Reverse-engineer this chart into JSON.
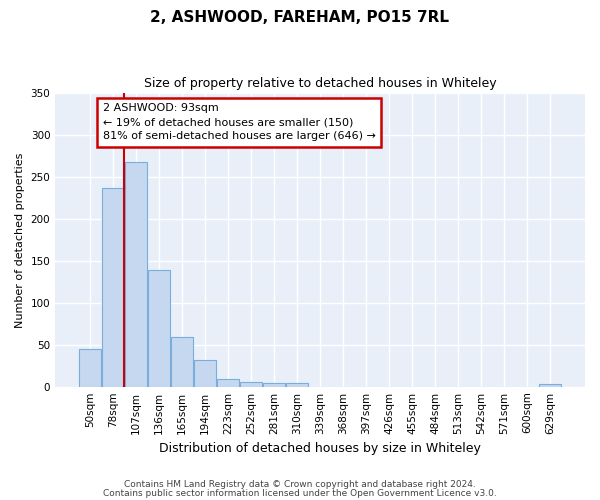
{
  "title": "2, ASHWOOD, FAREHAM, PO15 7RL",
  "subtitle": "Size of property relative to detached houses in Whiteley",
  "xlabel": "Distribution of detached houses by size in Whiteley",
  "ylabel": "Number of detached properties",
  "categories": [
    "50sqm",
    "78sqm",
    "107sqm",
    "136sqm",
    "165sqm",
    "194sqm",
    "223sqm",
    "252sqm",
    "281sqm",
    "310sqm",
    "339sqm",
    "368sqm",
    "397sqm",
    "426sqm",
    "455sqm",
    "484sqm",
    "513sqm",
    "542sqm",
    "571sqm",
    "600sqm",
    "629sqm"
  ],
  "values": [
    45,
    237,
    268,
    139,
    59,
    32,
    9,
    6,
    4,
    4,
    0,
    0,
    0,
    0,
    0,
    0,
    0,
    0,
    0,
    0,
    3
  ],
  "bar_color": "#c5d8f0",
  "bar_edge_color": "#7aadda",
  "plot_bg_color": "#e8eff9",
  "fig_bg_color": "#ffffff",
  "grid_color": "#ffffff",
  "ylim": [
    0,
    350
  ],
  "yticks": [
    0,
    50,
    100,
    150,
    200,
    250,
    300,
    350
  ],
  "red_line_color": "#cc0000",
  "annotation_text": "2 ASHWOOD: 93sqm\n← 19% of detached houses are smaller (150)\n81% of semi-detached houses are larger (646) →",
  "annotation_box_facecolor": "#ffffff",
  "annotation_box_edgecolor": "#cc0000",
  "footer_line1": "Contains HM Land Registry data © Crown copyright and database right 2024.",
  "footer_line2": "Contains public sector information licensed under the Open Government Licence v3.0.",
  "title_fontsize": 11,
  "subtitle_fontsize": 9,
  "xlabel_fontsize": 9,
  "ylabel_fontsize": 8,
  "tick_fontsize": 7.5,
  "footer_fontsize": 6.5,
  "ann_fontsize": 8
}
